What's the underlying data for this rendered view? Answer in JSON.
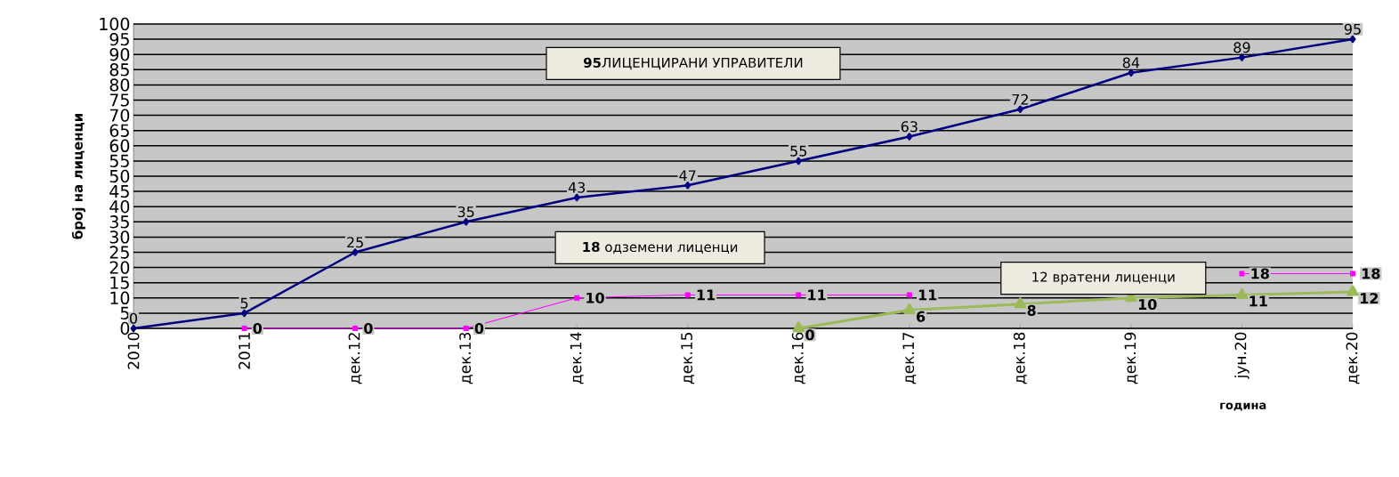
{
  "chart_data": {
    "type": "line",
    "xlabel": "година",
    "ylabel": "број на  лиценци",
    "categories": [
      "2010",
      "2011",
      "дек.12",
      "дек.13",
      "дек.14",
      "дек.15",
      "дек.16",
      "дек.17",
      "дек.18",
      "дек.19",
      "јун.20",
      "дек.20"
    ],
    "series": [
      {
        "color": "#000080",
        "marker": "diamond",
        "values": [
          0,
          5,
          25,
          35,
          43,
          47,
          55,
          63,
          72,
          84,
          89,
          95
        ]
      },
      {
        "color": "#ff00ff",
        "marker": "square",
        "values": [
          null,
          0,
          0,
          0,
          10,
          11,
          11,
          11,
          null,
          null,
          18,
          18
        ]
      },
      {
        "color": "#9bbb59",
        "marker": "triangle",
        "values": [
          null,
          null,
          null,
          null,
          null,
          null,
          0,
          6,
          8,
          10,
          11,
          12
        ]
      }
    ],
    "ylim": [
      0,
      100
    ],
    "yticks": [
      0,
      5,
      10,
      15,
      20,
      25,
      30,
      35,
      40,
      45,
      50,
      55,
      60,
      65,
      70,
      75,
      80,
      85,
      90,
      95,
      100
    ],
    "grid": "y",
    "data_labels": true,
    "annotations": [
      "**95**ЛИЦЕНЦИРАНИ  УПРАВИТЕЛИ",
      "**18** одземени лиценци",
      "12 вратени лиценци"
    ]
  }
}
